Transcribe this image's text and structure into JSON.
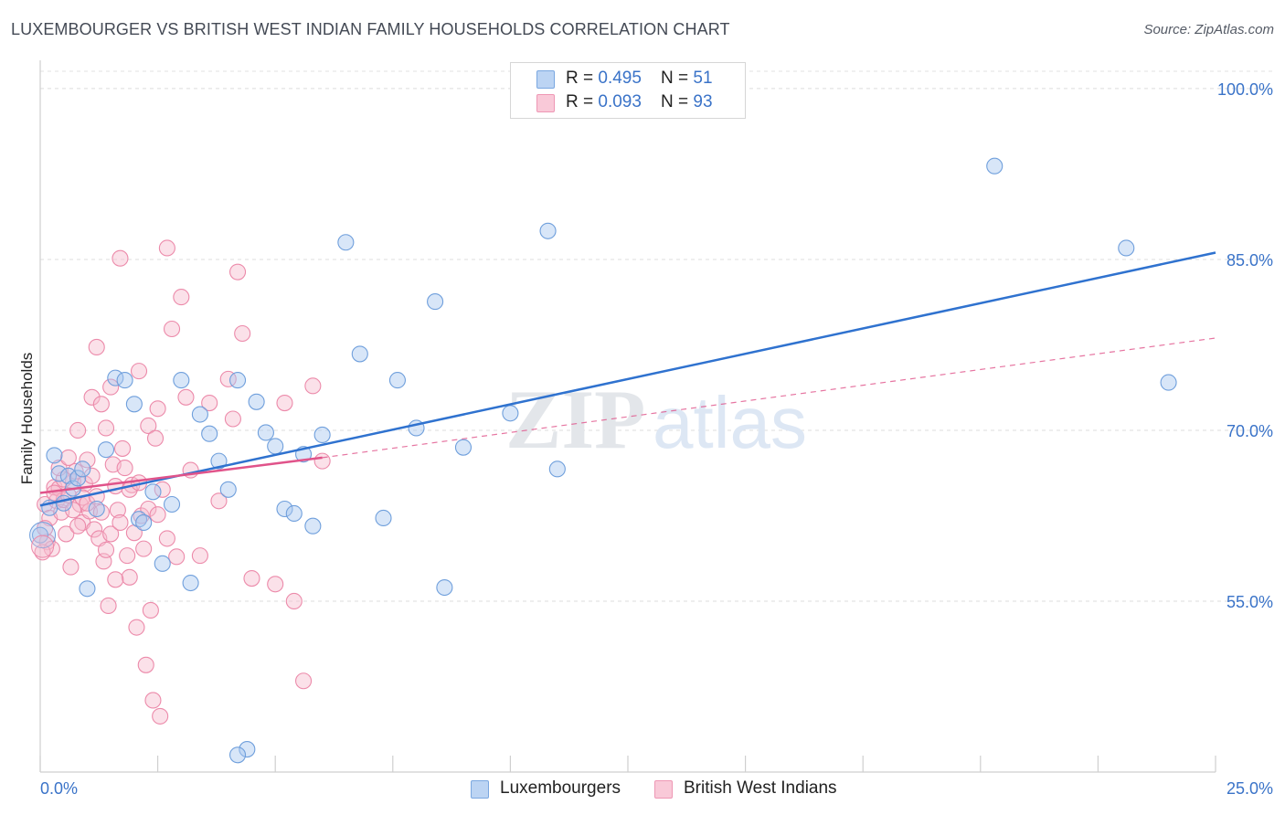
{
  "header": {
    "title": "LUXEMBOURGER VS BRITISH WEST INDIAN FAMILY HOUSEHOLDS CORRELATION CHART",
    "source": "Source: ZipAtlas.com"
  },
  "watermark": {
    "zip": "ZIP",
    "atlas": "atlas"
  },
  "legend_top": {
    "rows": [
      {
        "r_label": "R = ",
        "r_value": "0.495",
        "n_label": "N = ",
        "n_value": "51"
      },
      {
        "r_label": "R = ",
        "r_value": "0.093",
        "n_label": "N = ",
        "n_value": "93"
      }
    ]
  },
  "chart_data": {
    "type": "scatter",
    "title": "LUXEMBOURGER VS BRITISH WEST INDIAN FAMILY HOUSEHOLDS CORRELATION CHART",
    "xlabel": "",
    "ylabel": "Family Households",
    "xlim": [
      0,
      25
    ],
    "ylim": [
      40,
      102
    ],
    "x_ticks": [
      {
        "value": 0,
        "label": "0.0%"
      },
      {
        "value": 25,
        "label": "25.0%"
      }
    ],
    "y_ticks": [
      {
        "value": 55,
        "label": "55.0%"
      },
      {
        "value": 70,
        "label": "70.0%"
      },
      {
        "value": 85,
        "label": "85.0%"
      },
      {
        "value": 100,
        "label": "100.0%"
      }
    ],
    "grid": true,
    "legend_position": "bottom",
    "series": [
      {
        "name": "Luxembourgers",
        "color": "#a9c7ef",
        "edge": "#6f9fdc",
        "line_color": "#2f72cf",
        "trend": {
          "x0": 0,
          "y0": 63.4,
          "x1": 25,
          "y1": 85.6
        },
        "points": [
          [
            0.2,
            63.2
          ],
          [
            0.3,
            67.8
          ],
          [
            0.4,
            66.2
          ],
          [
            0.5,
            63.6
          ],
          [
            0.6,
            66.0
          ],
          [
            0.7,
            64.9
          ],
          [
            0.8,
            65.8
          ],
          [
            0.9,
            66.6
          ],
          [
            1.0,
            56.1
          ],
          [
            1.2,
            63.1
          ],
          [
            1.4,
            68.3
          ],
          [
            1.6,
            74.6
          ],
          [
            1.8,
            74.4
          ],
          [
            2.0,
            72.3
          ],
          [
            2.1,
            62.2
          ],
          [
            2.2,
            61.9
          ],
          [
            2.4,
            64.6
          ],
          [
            2.6,
            58.3
          ],
          [
            2.8,
            63.5
          ],
          [
            3.0,
            74.4
          ],
          [
            3.2,
            56.6
          ],
          [
            3.4,
            71.4
          ],
          [
            3.6,
            69.7
          ],
          [
            3.8,
            67.3
          ],
          [
            4.0,
            64.8
          ],
          [
            4.2,
            74.4
          ],
          [
            4.4,
            42.0
          ],
          [
            4.6,
            72.5
          ],
          [
            4.8,
            69.8
          ],
          [
            5.0,
            68.6
          ],
          [
            5.2,
            63.1
          ],
          [
            5.4,
            62.7
          ],
          [
            5.6,
            67.9
          ],
          [
            5.8,
            61.6
          ],
          [
            6.0,
            69.6
          ],
          [
            6.5,
            86.5
          ],
          [
            6.8,
            76.7
          ],
          [
            7.3,
            62.3
          ],
          [
            7.6,
            74.4
          ],
          [
            8.0,
            70.2
          ],
          [
            8.4,
            81.3
          ],
          [
            8.6,
            56.2
          ],
          [
            9.0,
            68.5
          ],
          [
            10.0,
            71.5
          ],
          [
            10.8,
            87.5
          ],
          [
            11.0,
            66.6
          ],
          [
            20.3,
            93.2
          ],
          [
            23.1,
            86.0
          ],
          [
            24.0,
            74.2
          ],
          [
            0.0,
            60.8
          ],
          [
            4.2,
            41.5
          ]
        ]
      },
      {
        "name": "British West Indians",
        "color": "#f7bccf",
        "edge": "#ec8aaa",
        "line_color": "#e0538a",
        "trend": {
          "x0": 0,
          "y0": 64.5,
          "x1": 6,
          "y1": 67.6
        },
        "trend_dash": {
          "x0": 6,
          "y0": 67.6,
          "x1": 25,
          "y1": 78.1
        },
        "points": [
          [
            0.1,
            63.5
          ],
          [
            0.15,
            60.2
          ],
          [
            0.2,
            62.3
          ],
          [
            0.25,
            59.6
          ],
          [
            0.3,
            65.0
          ],
          [
            0.35,
            63.8
          ],
          [
            0.4,
            64.9
          ],
          [
            0.45,
            62.8
          ],
          [
            0.5,
            63.9
          ],
          [
            0.55,
            60.9
          ],
          [
            0.6,
            64.3
          ],
          [
            0.65,
            58.0
          ],
          [
            0.7,
            65.5
          ],
          [
            0.75,
            66.4
          ],
          [
            0.8,
            70.0
          ],
          [
            0.85,
            63.5
          ],
          [
            0.9,
            61.9
          ],
          [
            0.95,
            65.3
          ],
          [
            1.0,
            67.4
          ],
          [
            1.05,
            62.9
          ],
          [
            1.1,
            72.9
          ],
          [
            1.15,
            61.3
          ],
          [
            1.2,
            77.3
          ],
          [
            1.25,
            60.5
          ],
          [
            1.3,
            72.3
          ],
          [
            1.35,
            58.5
          ],
          [
            1.4,
            70.2
          ],
          [
            1.45,
            54.6
          ],
          [
            1.5,
            73.8
          ],
          [
            1.55,
            67.0
          ],
          [
            1.6,
            65.1
          ],
          [
            1.65,
            63.0
          ],
          [
            1.7,
            85.1
          ],
          [
            1.75,
            68.4
          ],
          [
            1.8,
            66.7
          ],
          [
            1.85,
            59.0
          ],
          [
            1.9,
            57.1
          ],
          [
            1.95,
            65.2
          ],
          [
            2.0,
            61.0
          ],
          [
            2.05,
            52.7
          ],
          [
            2.1,
            75.2
          ],
          [
            2.15,
            62.5
          ],
          [
            2.2,
            59.6
          ],
          [
            2.25,
            49.4
          ],
          [
            2.3,
            70.4
          ],
          [
            2.35,
            54.2
          ],
          [
            2.4,
            46.3
          ],
          [
            2.45,
            69.3
          ],
          [
            2.5,
            71.9
          ],
          [
            2.55,
            44.9
          ],
          [
            2.6,
            64.8
          ],
          [
            2.7,
            86.0
          ],
          [
            2.8,
            78.9
          ],
          [
            2.9,
            58.9
          ],
          [
            3.0,
            81.7
          ],
          [
            3.1,
            72.9
          ],
          [
            3.2,
            66.5
          ],
          [
            3.4,
            59.0
          ],
          [
            3.6,
            72.4
          ],
          [
            3.8,
            63.8
          ],
          [
            4.0,
            74.5
          ],
          [
            4.1,
            71.0
          ],
          [
            4.2,
            83.9
          ],
          [
            4.3,
            78.5
          ],
          [
            4.5,
            57.0
          ],
          [
            5.0,
            56.5
          ],
          [
            5.2,
            72.4
          ],
          [
            5.4,
            55.0
          ],
          [
            5.6,
            48.0
          ],
          [
            5.8,
            73.9
          ],
          [
            6.0,
            67.3
          ],
          [
            0.05,
            59.3
          ],
          [
            0.1,
            61.4
          ],
          [
            0.3,
            64.5
          ],
          [
            0.5,
            65.7
          ],
          [
            0.7,
            63.0
          ],
          [
            0.9,
            64.1
          ],
          [
            1.1,
            66.0
          ],
          [
            1.3,
            62.8
          ],
          [
            1.5,
            60.9
          ],
          [
            1.7,
            61.9
          ],
          [
            1.9,
            64.8
          ],
          [
            2.1,
            65.4
          ],
          [
            2.3,
            63.1
          ],
          [
            2.5,
            62.6
          ],
          [
            2.7,
            60.5
          ],
          [
            0.4,
            66.7
          ],
          [
            0.6,
            67.6
          ],
          [
            0.8,
            61.6
          ],
          [
            1.0,
            63.6
          ],
          [
            1.2,
            64.2
          ],
          [
            1.4,
            59.5
          ],
          [
            1.6,
            56.9
          ]
        ]
      }
    ]
  }
}
